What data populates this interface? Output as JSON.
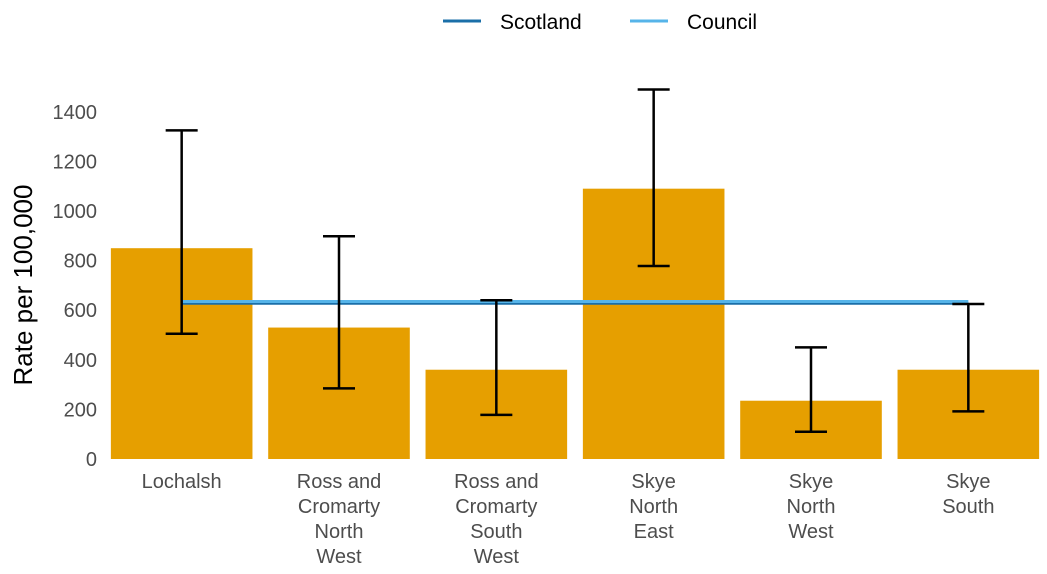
{
  "chart_data": {
    "type": "bar",
    "title": "",
    "xlabel": "",
    "ylabel": "Rate per 100,000",
    "ylim": [
      0,
      1500
    ],
    "yticks": [
      0,
      200,
      400,
      600,
      800,
      1000,
      1200,
      1400
    ],
    "grid": false,
    "legend_position": "top",
    "categories": [
      [
        "Lochalsh"
      ],
      [
        "Ross and",
        "Cromarty",
        "North",
        "West"
      ],
      [
        "Ross and",
        "Cromarty",
        "South",
        "West"
      ],
      [
        "Skye",
        "North",
        "East"
      ],
      [
        "Skye",
        "North",
        "West"
      ],
      [
        "Skye",
        "South"
      ]
    ],
    "values": [
      850,
      530,
      360,
      1090,
      235,
      360
    ],
    "error_low": [
      505,
      285,
      178,
      778,
      110,
      192
    ],
    "error_high": [
      1325,
      898,
      640,
      1490,
      450,
      625
    ],
    "bar_color": "#E69F00",
    "reference_lines": [
      {
        "name": "Scotland",
        "value": 628,
        "color": "#1a6fa8"
      },
      {
        "name": "Council",
        "value": 635,
        "color": "#56b4e9"
      }
    ]
  }
}
